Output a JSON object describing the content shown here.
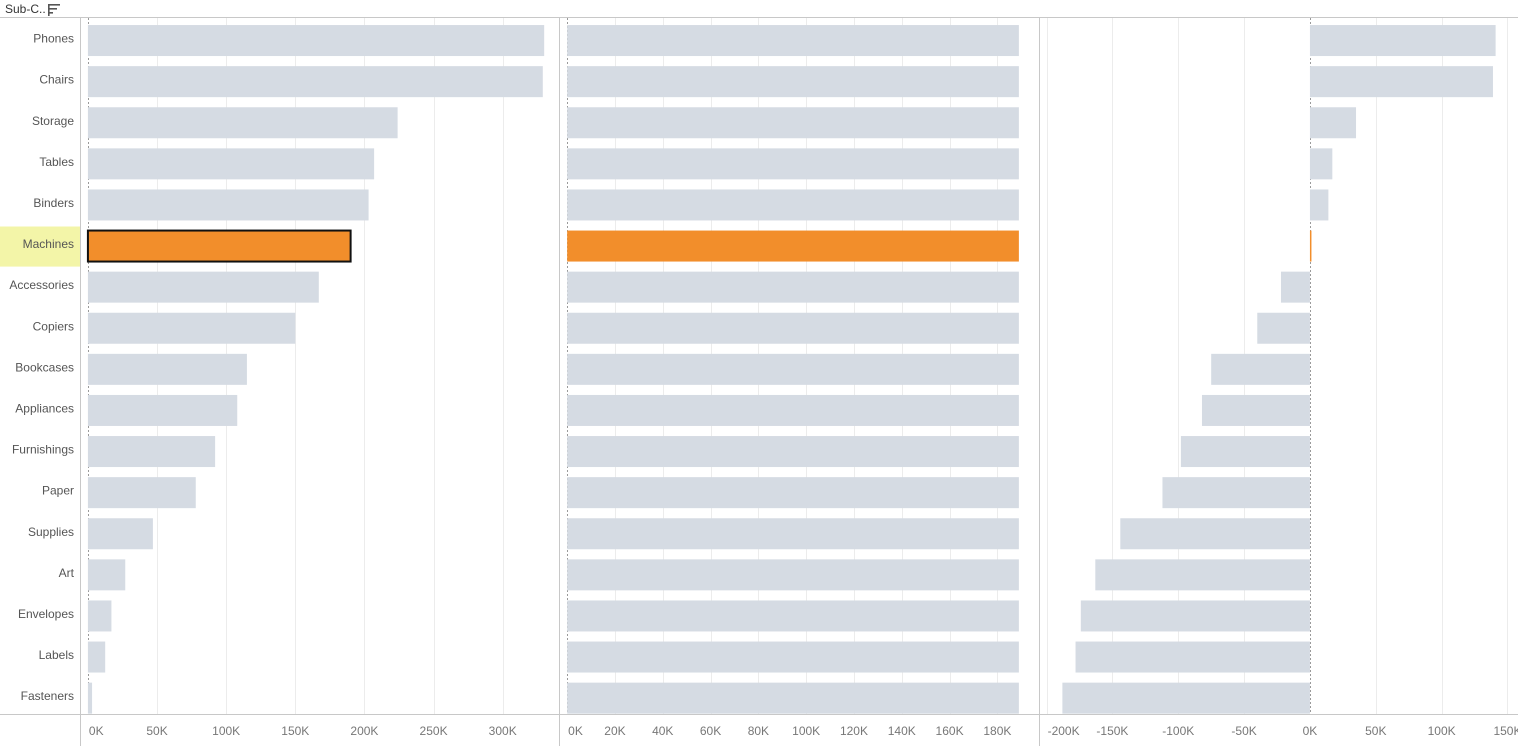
{
  "header": {
    "field_label": "Sub-C.."
  },
  "colors": {
    "bar": "#d5dbe3",
    "highlight": "#f28e2b",
    "highlight_label_bg": "#f3f5a8",
    "grid": "#ececec",
    "axis": "#c8c8c8"
  },
  "chart_data": {
    "type": "bar",
    "orientation": "horizontal",
    "categories": [
      "Phones",
      "Chairs",
      "Storage",
      "Tables",
      "Binders",
      "Machines",
      "Accessories",
      "Copiers",
      "Bookcases",
      "Appliances",
      "Furnishings",
      "Paper",
      "Supplies",
      "Art",
      "Envelopes",
      "Labels",
      "Fasteners"
    ],
    "highlighted_category": "Machines",
    "panels": [
      {
        "name": "",
        "ticks": [
          "0K",
          "50K",
          "100K",
          "150K",
          "200K",
          "250K",
          "300K"
        ],
        "tick_values": [
          0,
          50000,
          100000,
          150000,
          200000,
          250000,
          300000
        ],
        "xlim": [
          -5000,
          340000
        ],
        "values": [
          330000,
          329000,
          224000,
          207000,
          203000,
          190000,
          167000,
          150000,
          115000,
          108000,
          92000,
          78000,
          47000,
          27000,
          17000,
          12500,
          3000
        ]
      },
      {
        "name": "",
        "ticks": [
          "0K",
          "20K",
          "40K",
          "60K",
          "80K",
          "100K",
          "120K",
          "140K",
          "160K",
          "180K"
        ],
        "tick_values": [
          0,
          20000,
          40000,
          60000,
          80000,
          100000,
          120000,
          140000,
          160000,
          180000
        ],
        "xlim": [
          -3000,
          197000
        ],
        "values": [
          189000,
          189000,
          189000,
          189000,
          189000,
          189000,
          189000,
          189000,
          189000,
          189000,
          189000,
          189000,
          189000,
          189000,
          189000,
          189000,
          189000
        ]
      },
      {
        "name": "",
        "ticks": [
          "-200K",
          "-150K",
          "-100K",
          "-50K",
          "0K",
          "50K",
          "100K",
          "150K"
        ],
        "tick_values": [
          -200000,
          -150000,
          -100000,
          -50000,
          0,
          50000,
          100000,
          150000
        ],
        "xlim": [
          -205000,
          158000
        ],
        "values": [
          141000,
          139000,
          35000,
          17000,
          14000,
          1000,
          -22000,
          -40000,
          -75000,
          -82000,
          -98000,
          -112000,
          -144000,
          -163000,
          -174000,
          -178000,
          -188000
        ]
      }
    ]
  }
}
